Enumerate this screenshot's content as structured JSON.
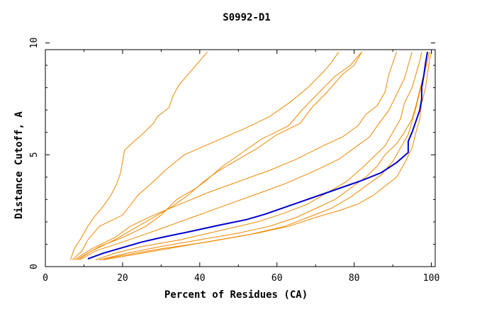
{
  "chart_data": {
    "type": "line",
    "title": "S0992-D1",
    "xlabel": "Percent of Residues (CA)",
    "ylabel": "Distance Cutoff, A",
    "xlim": [
      0,
      101
    ],
    "ylim": [
      0,
      9.7
    ],
    "x_ticks": [
      0,
      20,
      40,
      60,
      80,
      100
    ],
    "y_ticks": [
      0,
      5,
      10
    ],
    "grid": false,
    "colors": {
      "highlight": "#0000cc",
      "other": "#ee8800",
      "axis": "#000000"
    },
    "series": [
      {
        "highlighted": false,
        "points": [
          [
            6.5,
            0.3
          ],
          [
            7.5,
            0.8
          ],
          [
            9,
            1.2
          ],
          [
            11,
            1.8
          ],
          [
            13,
            2.3
          ],
          [
            15,
            2.7
          ],
          [
            17,
            3.2
          ],
          [
            18.5,
            3.7
          ],
          [
            19.5,
            4.2
          ],
          [
            20,
            4.7
          ],
          [
            20.5,
            5.2
          ],
          [
            23,
            5.6
          ],
          [
            25,
            5.9
          ],
          [
            28,
            6.4
          ],
          [
            29,
            6.7
          ],
          [
            32,
            7.1
          ],
          [
            33,
            7.6
          ],
          [
            34.5,
            8.1
          ],
          [
            37,
            8.6
          ],
          [
            39,
            9
          ],
          [
            42,
            9.6
          ]
        ]
      },
      {
        "highlighted": false,
        "points": [
          [
            7,
            0.3
          ],
          [
            9.5,
            0.7
          ],
          [
            11,
            1.2
          ],
          [
            14,
            1.8
          ],
          [
            20,
            2.3
          ],
          [
            24,
            3.2
          ],
          [
            28,
            3.8
          ],
          [
            31,
            4.3
          ],
          [
            36,
            5
          ],
          [
            44,
            5.6
          ],
          [
            52,
            6.2
          ],
          [
            58,
            6.7
          ],
          [
            63,
            7.3
          ],
          [
            68,
            8
          ],
          [
            72,
            8.7
          ],
          [
            74,
            9.1
          ],
          [
            76,
            9.6
          ]
        ]
      },
      {
        "highlighted": false,
        "points": [
          [
            8,
            0.3
          ],
          [
            14,
            0.9
          ],
          [
            20,
            1.3
          ],
          [
            26,
            1.8
          ],
          [
            30,
            2.3
          ],
          [
            34,
            3
          ],
          [
            39,
            3.5
          ],
          [
            42,
            3.9
          ],
          [
            46,
            4.5
          ],
          [
            51,
            5.1
          ],
          [
            56,
            5.7
          ],
          [
            63,
            6.3
          ],
          [
            67,
            7.1
          ],
          [
            71,
            7.8
          ],
          [
            75,
            8.5
          ],
          [
            79,
            9
          ],
          [
            82,
            9.6
          ]
        ]
      },
      {
        "highlighted": false,
        "points": [
          [
            8.5,
            0.3
          ],
          [
            12,
            0.7
          ],
          [
            18,
            1.2
          ],
          [
            24,
            1.8
          ],
          [
            28,
            2.2
          ],
          [
            33,
            2.7
          ],
          [
            37,
            3.2
          ],
          [
            41,
            3.8
          ],
          [
            45,
            4.3
          ],
          [
            50,
            4.8
          ],
          [
            55,
            5.3
          ],
          [
            60,
            5.9
          ],
          [
            66,
            6.4
          ],
          [
            69,
            7.1
          ],
          [
            73,
            7.8
          ],
          [
            77,
            8.6
          ],
          [
            80,
            9
          ],
          [
            82,
            9.6
          ]
        ]
      },
      {
        "highlighted": false,
        "points": [
          [
            7.5,
            0.3
          ],
          [
            12,
            0.8
          ],
          [
            18,
            1.3
          ],
          [
            22,
            1.8
          ],
          [
            28,
            2.3
          ],
          [
            35,
            2.8
          ],
          [
            42,
            3.3
          ],
          [
            50,
            3.8
          ],
          [
            58,
            4.3
          ],
          [
            65,
            4.8
          ],
          [
            72,
            5.4
          ],
          [
            77,
            5.8
          ],
          [
            81,
            6.3
          ],
          [
            83,
            6.8
          ],
          [
            86,
            7.2
          ],
          [
            88,
            7.8
          ],
          [
            89,
            8.6
          ],
          [
            90,
            9.1
          ],
          [
            91,
            9.6
          ]
        ]
      },
      {
        "highlighted": false,
        "points": [
          [
            9,
            0.3
          ],
          [
            13,
            0.7
          ],
          [
            20,
            1.1
          ],
          [
            30,
            1.7
          ],
          [
            38,
            2.2
          ],
          [
            46,
            2.7
          ],
          [
            54,
            3.2
          ],
          [
            62,
            3.7
          ],
          [
            70,
            4.3
          ],
          [
            76,
            4.8
          ],
          [
            80,
            5.3
          ],
          [
            84,
            5.8
          ],
          [
            86,
            6.3
          ],
          [
            89,
            7
          ],
          [
            91,
            7.7
          ],
          [
            93,
            8.4
          ],
          [
            94,
            9
          ],
          [
            95,
            9.6
          ]
        ]
      },
      {
        "highlighted": false,
        "points": [
          [
            13,
            0.3
          ],
          [
            18,
            0.6
          ],
          [
            25,
            0.9
          ],
          [
            35,
            1.2
          ],
          [
            45,
            1.6
          ],
          [
            55,
            2
          ],
          [
            62,
            2.4
          ],
          [
            68,
            2.8
          ],
          [
            73,
            3.3
          ],
          [
            78,
            3.8
          ],
          [
            82,
            4.4
          ],
          [
            85,
            4.9
          ],
          [
            88,
            5.4
          ],
          [
            90,
            6
          ],
          [
            92,
            6.6
          ],
          [
            93,
            7.3
          ],
          [
            95,
            8
          ],
          [
            96,
            8.6
          ],
          [
            97,
            9.2
          ],
          [
            97.5,
            9.6
          ]
        ]
      },
      {
        "highlighted": false,
        "points": [
          [
            14,
            0.3
          ],
          [
            21,
            0.6
          ],
          [
            30,
            0.9
          ],
          [
            40,
            1.2
          ],
          [
            50,
            1.5
          ],
          [
            58,
            1.8
          ],
          [
            65,
            2.2
          ],
          [
            70,
            2.6
          ],
          [
            75,
            3
          ],
          [
            79,
            3.5
          ],
          [
            83,
            4
          ],
          [
            86,
            4.5
          ],
          [
            88,
            5
          ],
          [
            91,
            5.5
          ],
          [
            93,
            6
          ],
          [
            95,
            6.6
          ],
          [
            96,
            7.2
          ],
          [
            97,
            7.9
          ],
          [
            98,
            8.6
          ],
          [
            98.5,
            9.2
          ],
          [
            99,
            9.6
          ]
        ]
      },
      {
        "highlighted": false,
        "points": [
          [
            14,
            0.3
          ],
          [
            20,
            0.5
          ],
          [
            30,
            0.8
          ],
          [
            42,
            1.1
          ],
          [
            52,
            1.4
          ],
          [
            62,
            1.8
          ],
          [
            68,
            2.2
          ],
          [
            74,
            2.6
          ],
          [
            79,
            3.1
          ],
          [
            83,
            3.6
          ],
          [
            87,
            4.1
          ],
          [
            90,
            4.7
          ],
          [
            92,
            5.3
          ],
          [
            94,
            5.9
          ],
          [
            95,
            6.5
          ],
          [
            96,
            7.1
          ],
          [
            97,
            7.8
          ],
          [
            98,
            8.5
          ],
          [
            99,
            9.2
          ],
          [
            99.5,
            9.6
          ]
        ]
      },
      {
        "highlighted": false,
        "points": [
          [
            15,
            0.3
          ],
          [
            25,
            0.6
          ],
          [
            35,
            0.9
          ],
          [
            45,
            1.2
          ],
          [
            55,
            1.5
          ],
          [
            63,
            1.8
          ],
          [
            70,
            2.2
          ],
          [
            76,
            2.5
          ],
          [
            81,
            2.8
          ],
          [
            85,
            3.2
          ],
          [
            88,
            3.6
          ],
          [
            91,
            4
          ],
          [
            93,
            4.6
          ],
          [
            95,
            5.3
          ],
          [
            96,
            6
          ],
          [
            97,
            6.6
          ],
          [
            97.5,
            7.3
          ],
          [
            98.5,
            8
          ],
          [
            99,
            8.6
          ],
          [
            99.5,
            9.2
          ],
          [
            100,
            9.6
          ]
        ]
      },
      {
        "highlighted": true,
        "points": [
          [
            11,
            0.35
          ],
          [
            15,
            0.6
          ],
          [
            20,
            0.85
          ],
          [
            25,
            1.1
          ],
          [
            30,
            1.3
          ],
          [
            37,
            1.55
          ],
          [
            45,
            1.85
          ],
          [
            52,
            2.1
          ],
          [
            57,
            2.35
          ],
          [
            62,
            2.65
          ],
          [
            67,
            2.95
          ],
          [
            72,
            3.25
          ],
          [
            77,
            3.55
          ],
          [
            82,
            3.85
          ],
          [
            87,
            4.2
          ],
          [
            91,
            4.65
          ],
          [
            94,
            5.1
          ],
          [
            94,
            5.6
          ],
          [
            95,
            6.0
          ],
          [
            96,
            6.5
          ],
          [
            97,
            7.0
          ],
          [
            97.5,
            7.5
          ],
          [
            97.5,
            8.0
          ],
          [
            98,
            8.5
          ],
          [
            98.5,
            9.1
          ],
          [
            99,
            9.6
          ]
        ]
      }
    ]
  }
}
